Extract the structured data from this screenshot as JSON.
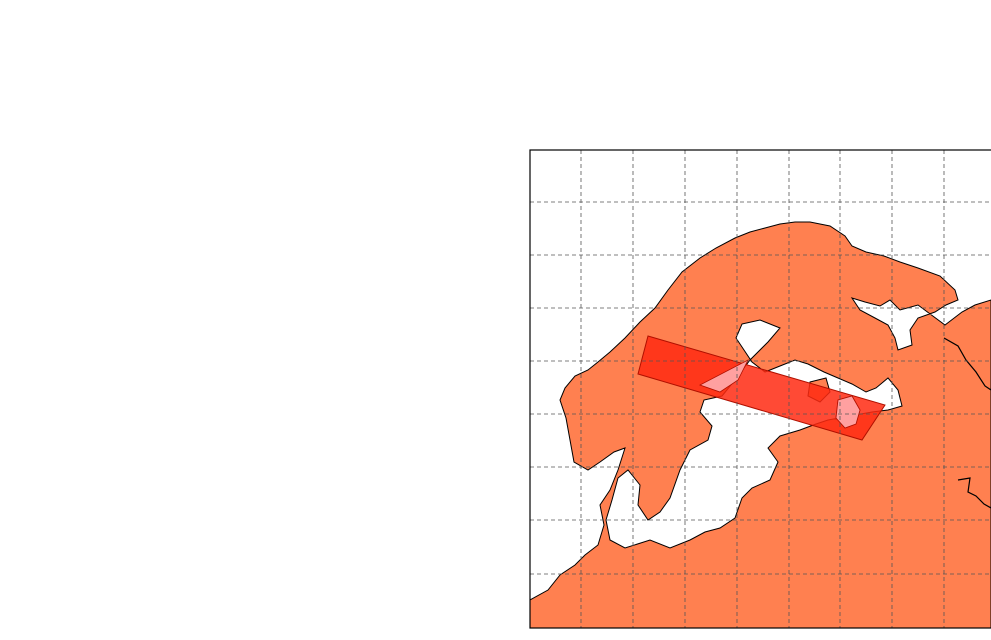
{
  "map": {
    "colors": {
      "background": "#ffffff",
      "land": "#ff8050",
      "highlight_band": "#ff2a12",
      "band_overlap_water": "#ffa0a0",
      "coastline": "#000000",
      "border": "#000000",
      "grid": "#555555",
      "frame": "#000000"
    },
    "gridlines": "dashed",
    "icons": [
      "graticule",
      "coastline",
      "highlight-band"
    ]
  }
}
